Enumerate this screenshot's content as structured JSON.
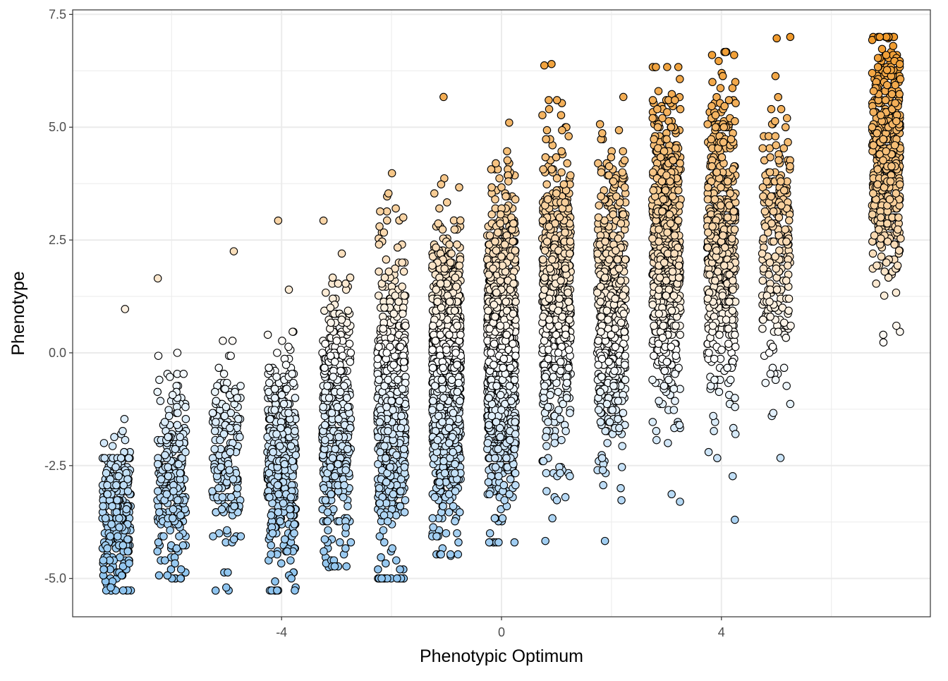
{
  "chart_data": {
    "type": "scatter",
    "title": "",
    "xlabel": "Phenotypic Optimum",
    "ylabel": "Phenotype",
    "xlim": [
      -7.8,
      7.8
    ],
    "ylim": [
      -5.85,
      7.6
    ],
    "x_ticks": [
      -4,
      0,
      4
    ],
    "x_tick_labels": [
      "-4",
      "0",
      "4"
    ],
    "y_ticks": [
      -5.0,
      -2.5,
      0.0,
      2.5,
      5.0,
      7.5
    ],
    "y_tick_labels": [
      "-5.0",
      "-2.5",
      "0.0",
      "2.5",
      "5.0",
      "7.5"
    ],
    "grid": true,
    "legend": "none",
    "jitter_width": 0.26,
    "color_scale": {
      "low": "#8ec4ef",
      "mid": "#ffffff",
      "high": "#f09a2c",
      "domain": [
        -5.0,
        0.0,
        7.0
      ]
    },
    "point_outline": "#000000",
    "groups": [
      {
        "x": -7.0,
        "n": 260,
        "mean": -3.6,
        "sd": 0.85,
        "min": -5.27,
        "max": 0.97
      },
      {
        "x": -6.0,
        "n": 240,
        "mean": -2.8,
        "sd": 1.0,
        "min": -5.0,
        "max": 1.65
      },
      {
        "x": -5.0,
        "n": 170,
        "mean": -2.4,
        "sd": 1.1,
        "min": -5.27,
        "max": 2.25
      },
      {
        "x": -4.0,
        "n": 420,
        "mean": -2.4,
        "sd": 1.2,
        "min": -5.27,
        "max": 2.93
      },
      {
        "x": -3.0,
        "n": 420,
        "mean": -1.5,
        "sd": 1.4,
        "min": -4.75,
        "max": 2.93
      },
      {
        "x": -2.0,
        "n": 600,
        "mean": -1.2,
        "sd": 1.6,
        "min": -5.0,
        "max": 3.98
      },
      {
        "x": -1.0,
        "n": 950,
        "mean": -0.4,
        "sd": 1.5,
        "min": -4.5,
        "max": 5.67
      },
      {
        "x": 0.0,
        "n": 1100,
        "mean": 0.1,
        "sd": 1.6,
        "min": -4.2,
        "max": 5.1
      },
      {
        "x": 1.0,
        "n": 650,
        "mean": 1.2,
        "sd": 1.6,
        "min": -4.17,
        "max": 6.37
      },
      {
        "x": 2.0,
        "n": 520,
        "mean": 1.1,
        "sd": 1.6,
        "min": -4.17,
        "max": 5.67
      },
      {
        "x": 3.0,
        "n": 650,
        "mean": 2.2,
        "sd": 1.6,
        "min": -3.3,
        "max": 6.33
      },
      {
        "x": 4.0,
        "n": 480,
        "mean": 2.4,
        "sd": 1.7,
        "min": -3.7,
        "max": 6.67
      },
      {
        "x": 5.0,
        "n": 230,
        "mean": 2.3,
        "sd": 1.6,
        "min": -2.33,
        "max": 6.97
      },
      {
        "x": 7.0,
        "n": 480,
        "mean": 4.4,
        "sd": 1.3,
        "min": 0.23,
        "max": 6.97
      }
    ]
  }
}
